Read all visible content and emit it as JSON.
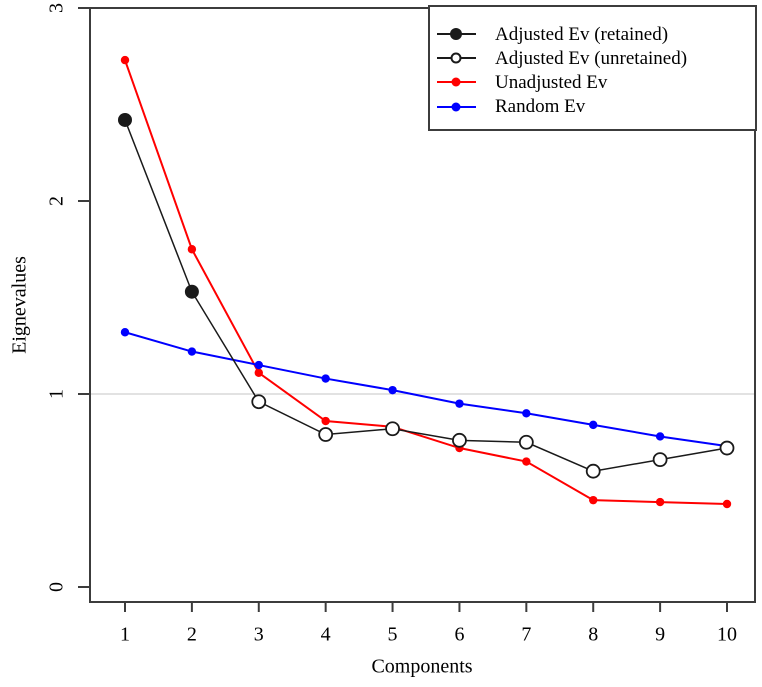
{
  "chart_data": {
    "type": "line",
    "title": "",
    "xlabel": "Components",
    "ylabel": "Eignevalues",
    "x": [
      1,
      2,
      3,
      4,
      5,
      6,
      7,
      8,
      9,
      10
    ],
    "x_ticks": [
      "1",
      "2",
      "3",
      "4",
      "5",
      "6",
      "7",
      "8",
      "9",
      "10"
    ],
    "y_ticks": [
      "0",
      "1",
      "2",
      "3"
    ],
    "ylim": [
      0,
      3
    ],
    "grid": false,
    "reference_line_y": 1,
    "reference_line_color": "#d9d9d9",
    "axis_color": "#3c3c3c",
    "legend_position": "top-right",
    "series": [
      {
        "name": "Adjusted Ev",
        "color": "#1a1a1a",
        "line_width": 1.5,
        "retained_count": 2,
        "draw_order": 3,
        "values": [
          2.42,
          1.53,
          0.96,
          0.79,
          0.82,
          0.76,
          0.75,
          0.6,
          0.66,
          0.72
        ]
      },
      {
        "name": "Unadjusted Ev",
        "color": "#ff0000",
        "line_width": 2,
        "draw_order": 1,
        "values": [
          2.73,
          1.75,
          1.11,
          0.86,
          0.83,
          0.72,
          0.65,
          0.45,
          0.44,
          0.43
        ]
      },
      {
        "name": "Random Ev",
        "color": "#0000ff",
        "line_width": 2,
        "draw_order": 2,
        "values": [
          1.32,
          1.22,
          1.15,
          1.08,
          1.02,
          0.95,
          0.9,
          0.84,
          0.78,
          0.73
        ]
      }
    ],
    "legend": {
      "items": [
        {
          "label": "Adjusted Ev (retained)",
          "color": "#1a1a1a",
          "marker": "filled"
        },
        {
          "label": "Adjusted Ev (unretained)",
          "color": "#1a1a1a",
          "marker": "open"
        },
        {
          "label": "Unadjusted Ev",
          "color": "#ff0000",
          "marker": "filled-small"
        },
        {
          "label": "Random Ev",
          "color": "#0000ff",
          "marker": "filled-small"
        }
      ]
    }
  }
}
